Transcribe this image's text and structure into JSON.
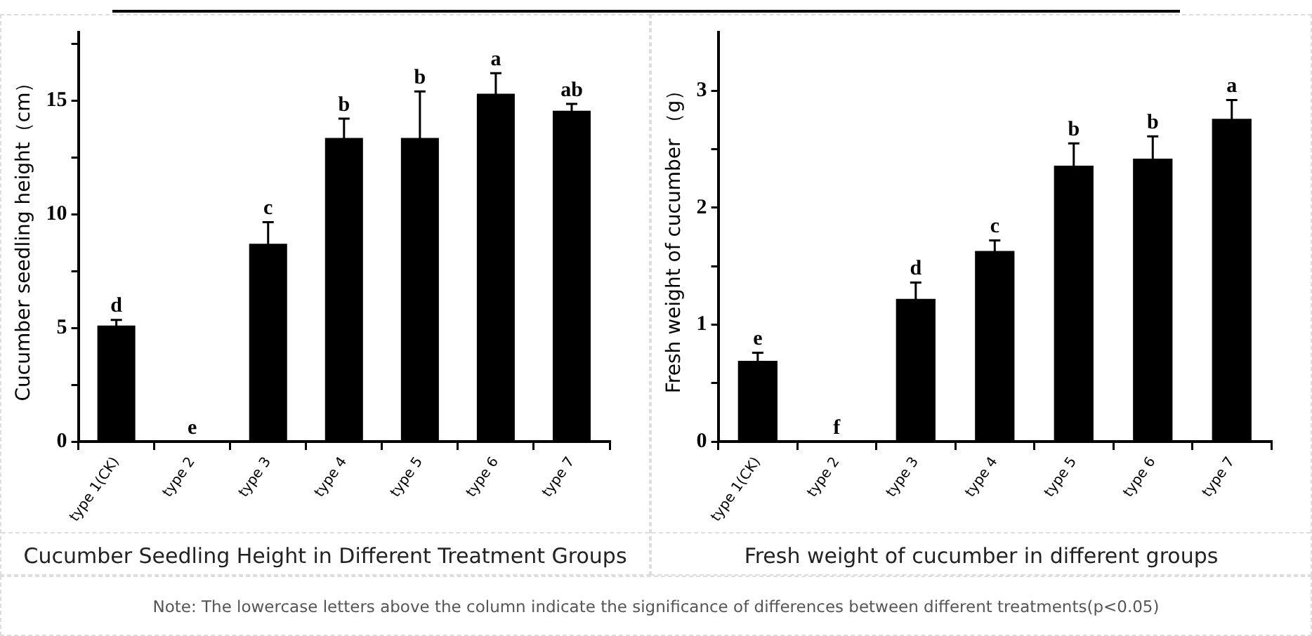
{
  "chart_data": [
    {
      "type": "bar",
      "title": "Cucumber Seedling Height in Different Treatment Groups",
      "ylabel": "Cucumber seedling height（cm）",
      "categories": [
        "type 1(CK)",
        "type 2",
        "type 3",
        "type 4",
        "type 5",
        "type 6",
        "type 7"
      ],
      "series": [
        {
          "color": "#000000",
          "values": [
            5.1,
            0,
            8.7,
            13.35,
            13.35,
            15.3,
            14.55
          ],
          "errors": [
            0.25,
            null,
            0.95,
            0.85,
            2.05,
            0.9,
            0.3
          ]
        }
      ],
      "ylim": [
        0,
        18
      ],
      "yticks": [
        0,
        {
          "value": 2.5,
          "label": null
        },
        5,
        {
          "value": 7.5,
          "label": null
        },
        10,
        {
          "value": 12.5,
          "label": null
        },
        15,
        {
          "value": 17.5,
          "label": null
        }
      ],
      "grid": false,
      "legend": false,
      "annotations": [
        {
          "text": "d",
          "x": "type 1(CK)",
          "y": 5.35
        },
        {
          "text": "e",
          "x": "type 2",
          "y": 0
        },
        {
          "text": "c",
          "x": "type 3",
          "y": 9.65
        },
        {
          "text": "b",
          "x": "type 4",
          "y": 14.2
        },
        {
          "text": "b",
          "x": "type 5",
          "y": 15.4
        },
        {
          "text": "a",
          "x": "type 6",
          "y": 16.2
        },
        {
          "text": "ab",
          "x": "type 7",
          "y": 14.85
        }
      ]
    },
    {
      "type": "bar",
      "title": "Fresh weight of cucumber in different groups",
      "ylabel": "Fresh weight of cucumber （g）",
      "categories": [
        "type 1(CK)",
        "type 2",
        "type 3",
        "type 4",
        "type 5",
        "type 6",
        "type 7"
      ],
      "series": [
        {
          "color": "#000000",
          "values": [
            0.69,
            0,
            1.22,
            1.63,
            2.36,
            2.42,
            2.76
          ],
          "errors": [
            0.07,
            null,
            0.14,
            0.09,
            0.19,
            0.19,
            0.16
          ]
        }
      ],
      "ylim": [
        0,
        3.5
      ],
      "yticks": [
        0,
        {
          "value": 0.5,
          "label": null
        },
        1,
        {
          "value": 1.5,
          "label": null
        },
        2,
        {
          "value": 2.5,
          "label": null
        },
        3
      ],
      "grid": false,
      "legend": false,
      "annotations": [
        {
          "text": "e",
          "x": "type 1(CK)",
          "y": 0.76
        },
        {
          "text": "f",
          "x": "type 2",
          "y": 0
        },
        {
          "text": "d",
          "x": "type 3",
          "y": 1.36
        },
        {
          "text": "c",
          "x": "type 4",
          "y": 1.72
        },
        {
          "text": "b",
          "x": "type 5",
          "y": 2.55
        },
        {
          "text": "b",
          "x": "type 6",
          "y": 2.61
        },
        {
          "text": "a",
          "x": "type 7",
          "y": 2.92
        },
        "Note: The lowercase letters above the column indicate the significance of differences between different treatments(p<0.05)"
      ]
    }
  ]
}
